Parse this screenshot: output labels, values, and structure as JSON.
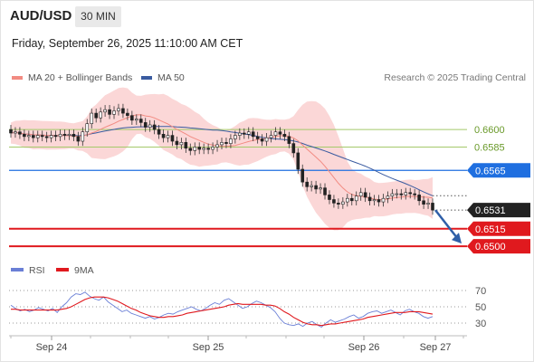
{
  "header": {
    "symbol": "AUD/USD",
    "timeframe": "30 MIN",
    "timestamp": "Friday, September 26, 2025 11:10:00 AM CET"
  },
  "legend": {
    "ma20": "MA 20 + Bollinger Bands",
    "ma50": "MA 50",
    "research": "Research © 2025 Trading Central",
    "colors": {
      "ma20": "#f28b82",
      "ma50": "#3a5ba0",
      "bands": "#f9c9c9"
    }
  },
  "chart_data": [
    {
      "type": "candlestick",
      "title": "AUD/USD 30 MIN",
      "ylim": [
        0.649,
        0.6635
      ],
      "x_ticks": [
        "Sep 24",
        "Sep 25",
        "Sep 26",
        "Sep 27"
      ],
      "candles_close": [
        0.6597,
        0.6598,
        0.6596,
        0.6594,
        0.6595,
        0.6593,
        0.6595,
        0.6594,
        0.6593,
        0.6595,
        0.6594,
        0.6596,
        0.6595,
        0.6596,
        0.6594,
        0.659,
        0.6598,
        0.6605,
        0.6614,
        0.661,
        0.6615,
        0.6617,
        0.6613,
        0.6616,
        0.6618,
        0.6614,
        0.6612,
        0.6608,
        0.6609,
        0.6606,
        0.6602,
        0.6604,
        0.66,
        0.6596,
        0.6593,
        0.6595,
        0.659,
        0.6587,
        0.6589,
        0.6584,
        0.6582,
        0.6585,
        0.6583,
        0.6584,
        0.6583,
        0.6585,
        0.6587,
        0.6589,
        0.6588,
        0.6592,
        0.6595,
        0.6597,
        0.6596,
        0.6598,
        0.6594,
        0.6592,
        0.659,
        0.6593,
        0.6595,
        0.6598,
        0.6596,
        0.6594,
        0.6588,
        0.658,
        0.6566,
        0.6555,
        0.6551,
        0.6552,
        0.6549,
        0.655,
        0.6544,
        0.654,
        0.6537,
        0.6536,
        0.6538,
        0.6541,
        0.6539,
        0.6543,
        0.6546,
        0.6542,
        0.6539,
        0.654,
        0.6538,
        0.6541,
        0.6543,
        0.6545,
        0.6545,
        0.6544,
        0.6546,
        0.6545,
        0.6544,
        0.6539,
        0.6536,
        0.6537,
        0.6531
      ],
      "levels": [
        {
          "value": 0.66,
          "label": "0.6600",
          "color": "#a4c96a",
          "kind": "resistance"
        },
        {
          "value": 0.6585,
          "label": "0.6585",
          "color": "#a4c96a",
          "kind": "resistance"
        },
        {
          "value": 0.6565,
          "label": "0.6565",
          "color": "#1f6fe0",
          "kind": "pivot"
        },
        {
          "value": 0.6531,
          "label": "0.6531",
          "color": "#222222",
          "kind": "last"
        },
        {
          "value": 0.6515,
          "label": "0.6515",
          "color": "#e0191e",
          "kind": "support"
        },
        {
          "value": 0.65,
          "label": "0.6500",
          "color": "#e0191e",
          "kind": "support"
        }
      ],
      "ma50_label": "MA 50",
      "ma20_label": "MA 20 + Bollinger Bands",
      "forecast": {
        "direction": "down",
        "from": 0.6531,
        "to": 0.65,
        "color": "#2f5fa8"
      }
    },
    {
      "type": "line",
      "title": "RSI",
      "legend": [
        "RSI",
        "9MA"
      ],
      "ylim": [
        20,
        80
      ],
      "y_ticks": [
        70,
        50,
        30
      ],
      "series": [
        {
          "name": "RSI",
          "color": "#6a7fd6",
          "values": [
            52,
            48,
            45,
            47,
            44,
            46,
            49,
            47,
            45,
            48,
            43,
            50,
            55,
            62,
            66,
            65,
            68,
            63,
            60,
            58,
            62,
            56,
            52,
            48,
            44,
            46,
            42,
            40,
            38,
            36,
            38,
            35,
            37,
            40,
            42,
            41,
            44,
            46,
            48,
            50,
            47,
            45,
            48,
            52,
            55,
            53,
            58,
            60,
            56,
            52,
            48,
            50,
            54,
            57,
            55,
            52,
            49,
            44,
            36,
            30,
            28,
            27,
            29,
            26,
            30,
            32,
            28,
            25,
            30,
            34,
            31,
            33,
            35,
            38,
            40,
            36,
            38,
            42,
            44,
            45,
            42,
            44,
            46,
            43,
            40,
            45,
            47,
            44,
            42,
            38,
            36,
            38
          ]
        },
        {
          "name": "9MA",
          "color": "#e0191e",
          "values": [
            47,
            47,
            46,
            46,
            46,
            46,
            46,
            46,
            46,
            46,
            46,
            47,
            48,
            50,
            53,
            56,
            59,
            61,
            62,
            62,
            62,
            61,
            59,
            57,
            54,
            51,
            48,
            46,
            43,
            41,
            39,
            38,
            37,
            37,
            38,
            38,
            39,
            40,
            42,
            43,
            44,
            45,
            46,
            47,
            48,
            49,
            50,
            52,
            53,
            54,
            53,
            53,
            53,
            53,
            53,
            52,
            52,
            51,
            48,
            44,
            41,
            37,
            34,
            31,
            29,
            28,
            28,
            27,
            28,
            29,
            29,
            30,
            31,
            32,
            33,
            34,
            35,
            37,
            38,
            39,
            40,
            41,
            42,
            43,
            43,
            43,
            44,
            44,
            44,
            43,
            42,
            41
          ]
        }
      ],
      "x_ticks": [
        "Sep 24",
        "Sep 25",
        "Sep 26",
        "Sep 27"
      ]
    }
  ]
}
